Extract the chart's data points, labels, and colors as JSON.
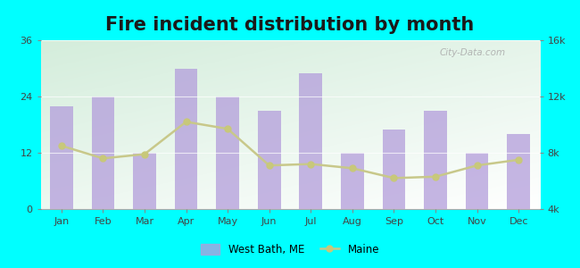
{
  "title": "Fire incident distribution by month",
  "months": [
    "Jan",
    "Feb",
    "Mar",
    "Apr",
    "May",
    "Jun",
    "Jul",
    "Aug",
    "Sep",
    "Oct",
    "Nov",
    "Dec"
  ],
  "west_bath_values": [
    22,
    24,
    12,
    30,
    24,
    21,
    29,
    12,
    17,
    21,
    12,
    16
  ],
  "maine_values": [
    8500,
    7600,
    7900,
    10200,
    9700,
    7100,
    7200,
    6900,
    6200,
    6300,
    7100,
    7500
  ],
  "bar_color": "#b39ddb",
  "bar_alpha": 0.75,
  "line_color": "#c8c88a",
  "line_marker": "o",
  "line_marker_color": "#c8c87a",
  "line_marker_size": 5,
  "background_color": "#00ffff",
  "plot_bg_colors": [
    "#e8f5e0",
    "#f0fff8"
  ],
  "left_ylim": [
    0,
    36
  ],
  "right_ylim": [
    4000,
    16000
  ],
  "left_yticks": [
    0,
    12,
    24,
    36
  ],
  "right_yticks": [
    4000,
    8000,
    12000,
    16000
  ],
  "right_yticklabels": [
    "4k",
    "8k",
    "12k",
    "16k"
  ],
  "title_fontsize": 15,
  "tick_fontsize": 8,
  "legend_label_bar": "West Bath, ME",
  "legend_label_line": "Maine",
  "watermark": "City-Data.com"
}
